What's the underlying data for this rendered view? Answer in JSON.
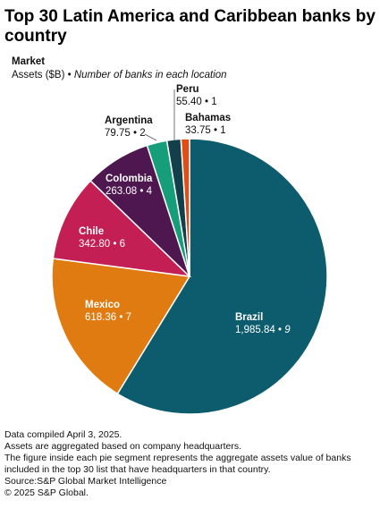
{
  "title": "Top 30 Latin America and Caribbean banks by country",
  "legend": {
    "heading": "Market",
    "line_prefix": "Assets ($B) • ",
    "line_italic": "Number of banks in each location"
  },
  "chart_data": {
    "type": "pie",
    "unit": "$B",
    "slices": [
      {
        "name": "Brazil",
        "value": 1985.84,
        "value_label": "1,985.84",
        "banks": "9",
        "color": "#0c5c6e"
      },
      {
        "name": "Mexico",
        "value": 618.36,
        "value_label": "618.36",
        "banks": "7",
        "color": "#e07b12"
      },
      {
        "name": "Chile",
        "value": 342.8,
        "value_label": "342.80",
        "banks": "6",
        "color": "#c41f55"
      },
      {
        "name": "Colombia",
        "value": 263.08,
        "value_label": "263.08",
        "banks": "4",
        "color": "#4e1750"
      },
      {
        "name": "Argentina",
        "value": 79.75,
        "value_label": "79.75",
        "banks": "2",
        "color": "#169e7b"
      },
      {
        "name": "Peru",
        "value": 55.4,
        "value_label": "55.40",
        "banks": "1",
        "color": "#123f4a"
      },
      {
        "name": "Bahamas",
        "value": 33.75,
        "value_label": "33.75",
        "banks": "1",
        "color": "#e04e16"
      }
    ]
  },
  "footer": {
    "compiled": "Data compiled April 3, 2025.",
    "note1": "Assets are aggregated based on company headquarters.",
    "note2": "The figure inside each pie segment represents the aggregate assets value of banks included in the top 30 list that have headquarters in that country.",
    "source": "Source:S&P Global Market Intelligence",
    "copyright": "© 2025 S&P Global."
  }
}
